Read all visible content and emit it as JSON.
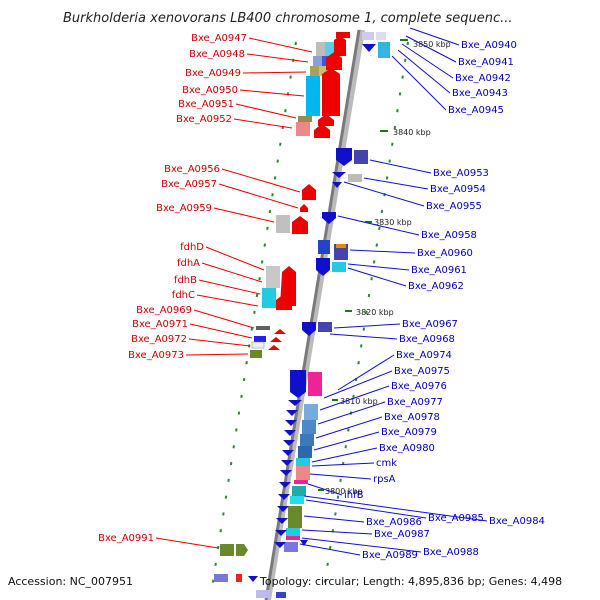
{
  "title": "Burkholderia xenovorans LB400 chromosome 1, complete sequenc...",
  "footer": {
    "accession": "Accession: NC_007951",
    "topology": "Topology: circular; Length: 4,895,836 bp; Genes: 4,498"
  },
  "kbp_ticks": [
    "3850 kbp",
    "3840 kbp",
    "3830 kbp",
    "3820 kbp",
    "3810 kbp",
    "3800 kbp"
  ],
  "left_labels": [
    "Bxe_A0947",
    "Bxe_A0948",
    "Bxe_A0949",
    "Bxe_A0950",
    "Bxe_A0951",
    "Bxe_A0952",
    "Bxe_A0956",
    "Bxe_A0957",
    "Bxe_A0959",
    "fdhD",
    "fdhA",
    "fdhB",
    "fdhC",
    "Bxe_A0969",
    "Bxe_A0971",
    "Bxe_A0972",
    "Bxe_A0973",
    "Bxe_A0991"
  ],
  "right_labels": [
    "Bxe_A0940",
    "Bxe_A0941",
    "Bxe_A0942",
    "Bxe_A0943",
    "Bxe_A0945",
    "Bxe_A0953",
    "Bxe_A0954",
    "Bxe_A0955",
    "Bxe_A0958",
    "Bxe_A0960",
    "Bxe_A0961",
    "Bxe_A0962",
    "Bxe_A0967",
    "Bxe_A0968",
    "Bxe_A0974",
    "Bxe_A0975",
    "Bxe_A0976",
    "Bxe_A0977",
    "Bxe_A0978",
    "Bxe_A0979",
    "Bxe_A0980",
    "cmk",
    "rpsA",
    "ihfB",
    "Bxe_A0985",
    "Bxe_A0984",
    "Bxe_A0986",
    "Bxe_A0987",
    "Bxe_A0988",
    "Bxe_A0989"
  ],
  "colors": {
    "forward_strand": "#ee0000",
    "reverse_strand": "#1010cc",
    "backbone": "#888888",
    "kbp_tick": "#1a7a1a"
  }
}
